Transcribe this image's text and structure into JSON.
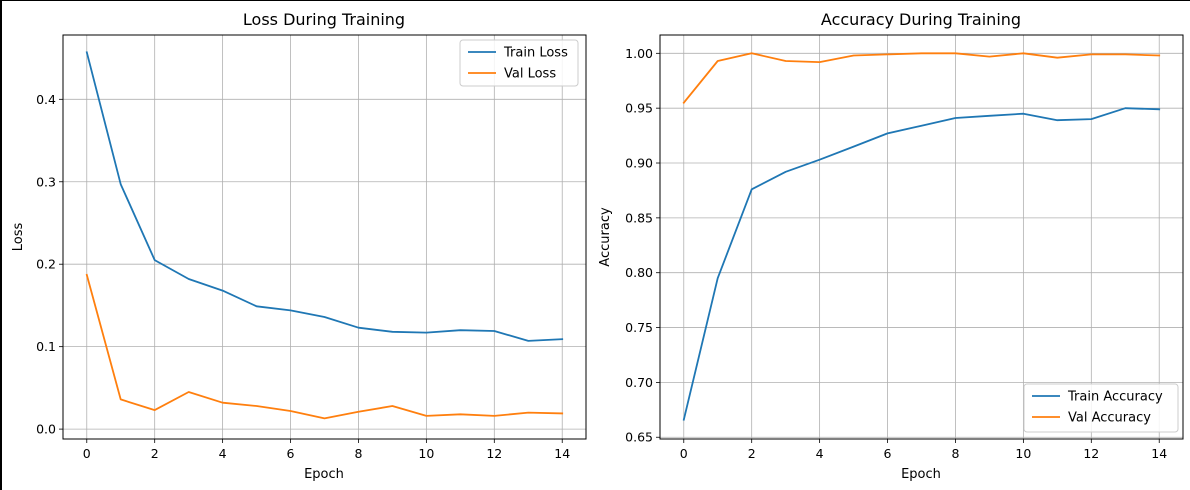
{
  "chart_data": [
    {
      "type": "line",
      "title": "Loss During Training",
      "xlabel": "Epoch",
      "ylabel": "Loss",
      "xlim": [
        -0.7,
        14.7
      ],
      "ylim": [
        -0.012,
        0.478
      ],
      "xticks": [
        0,
        2,
        4,
        6,
        8,
        10,
        12,
        14
      ],
      "xtick_labels": [
        "0",
        "2",
        "4",
        "6",
        "8",
        "10",
        "12",
        "14"
      ],
      "yticks": [
        0.0,
        0.1,
        0.2,
        0.3,
        0.4
      ],
      "ytick_labels": [
        "0.0",
        "0.1",
        "0.2",
        "0.3",
        "0.4"
      ],
      "grid": true,
      "legend_position": "top-right",
      "x": [
        0,
        1,
        2,
        3,
        4,
        5,
        6,
        7,
        8,
        9,
        10,
        11,
        12,
        13,
        14
      ],
      "series": [
        {
          "name": "Train Loss",
          "color": "#1f77b4",
          "values": [
            0.457,
            0.297,
            0.205,
            0.182,
            0.168,
            0.149,
            0.144,
            0.136,
            0.123,
            0.118,
            0.117,
            0.12,
            0.119,
            0.107,
            0.109
          ]
        },
        {
          "name": "Val Loss",
          "color": "#ff7f0e",
          "values": [
            0.187,
            0.036,
            0.023,
            0.045,
            0.032,
            0.028,
            0.022,
            0.013,
            0.021,
            0.028,
            0.016,
            0.018,
            0.016,
            0.02,
            0.019
          ]
        }
      ]
    },
    {
      "type": "line",
      "title": "Accuracy During Training",
      "xlabel": "Epoch",
      "ylabel": "Accuracy",
      "xlim": [
        -0.7,
        14.7
      ],
      "ylim": [
        0.6484,
        1.0167
      ],
      "xticks": [
        0,
        2,
        4,
        6,
        8,
        10,
        12,
        14
      ],
      "xtick_labels": [
        "0",
        "2",
        "4",
        "6",
        "8",
        "10",
        "12",
        "14"
      ],
      "yticks": [
        0.65,
        0.7,
        0.75,
        0.8,
        0.85,
        0.9,
        0.95,
        1.0
      ],
      "ytick_labels": [
        "0.65",
        "0.70",
        "0.75",
        "0.80",
        "0.85",
        "0.90",
        "0.95",
        "1.00"
      ],
      "grid": true,
      "legend_position": "bottom-right",
      "x": [
        0,
        1,
        2,
        3,
        4,
        5,
        6,
        7,
        8,
        9,
        10,
        11,
        12,
        13,
        14
      ],
      "series": [
        {
          "name": "Train Accuracy",
          "color": "#1f77b4",
          "values": [
            0.666,
            0.795,
            0.876,
            0.892,
            0.903,
            0.915,
            0.927,
            0.934,
            0.941,
            0.943,
            0.945,
            0.939,
            0.94,
            0.95,
            0.949
          ]
        },
        {
          "name": "Val Accuracy",
          "color": "#ff7f0e",
          "values": [
            0.955,
            0.993,
            1.0,
            0.993,
            0.992,
            0.998,
            0.999,
            1.0,
            1.0,
            0.997,
            1.0,
            0.996,
            0.999,
            0.999,
            0.998
          ]
        }
      ]
    }
  ]
}
